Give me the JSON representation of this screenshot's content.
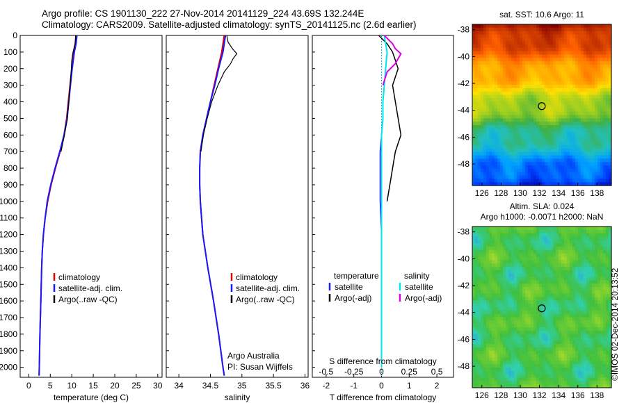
{
  "header": {
    "line1": "Argo profile: CS 1901130_222 27-Nov-2014 20141129_224 43.69S 132.244E",
    "line2": "Climatology: CARS2009. Satellite-adjusted climatology: synTS_20141125.nc (2.6d earlier)"
  },
  "side_stamp": "©IMOS 02-Dec-2014 20:13:52",
  "colors": {
    "climatology": "#e00000",
    "satellite": "#1a1aff",
    "argo": "#000000",
    "sat_sal": "#00e5ee",
    "argo_sal": "#e000e0"
  },
  "chart_data": [
    {
      "type": "line",
      "id": "temperature",
      "xlabel": "temperature (deg C)",
      "ylabel": "",
      "xlim": [
        -2,
        31
      ],
      "ylim": [
        2060,
        0
      ],
      "y_inverted": true,
      "xticks": [
        "0",
        "5",
        "10",
        "15",
        "20",
        "25",
        "30"
      ],
      "xtick_values": [
        0,
        5,
        10,
        15,
        20,
        25,
        30
      ],
      "yticks": [
        "0",
        "100",
        "200",
        "300",
        "400",
        "500",
        "600",
        "700",
        "800",
        "900",
        "1000",
        "1100",
        "1200",
        "1300",
        "1400",
        "1500",
        "1600",
        "1700",
        "1800",
        "1900",
        "2000"
      ],
      "legend": [
        "climatology",
        "satellite-adj. clim.",
        "Argo(..raw -QC)"
      ],
      "legend_position": "lower-right",
      "series": [
        {
          "name": "climatology",
          "depth": [
            0,
            50,
            100,
            200,
            300,
            400,
            500,
            600,
            700,
            800,
            900,
            1000,
            1100,
            1200,
            1300,
            1400,
            1600,
            1800,
            2000,
            2050
          ],
          "values": [
            11.0,
            10.8,
            10.4,
            10.0,
            9.6,
            9.2,
            8.8,
            8.2,
            7.3,
            6.2,
            5.2,
            4.4,
            3.8,
            3.4,
            3.15,
            3.0,
            2.8,
            2.6,
            2.45,
            2.4
          ]
        },
        {
          "name": "satellite-adj. clim.",
          "depth": [
            0,
            50,
            100,
            200,
            300,
            400,
            500,
            600,
            700,
            800,
            900,
            1000,
            1100,
            1200,
            1300,
            1400,
            1600,
            1800,
            2000,
            2050
          ],
          "values": [
            11.2,
            11.0,
            10.6,
            10.1,
            9.7,
            9.3,
            8.9,
            8.2,
            7.2,
            6.1,
            5.1,
            4.3,
            3.8,
            3.4,
            3.15,
            3.0,
            2.8,
            2.6,
            2.45,
            2.4
          ]
        },
        {
          "name": "Argo(..raw -QC)",
          "depth": [
            0,
            50,
            100,
            150,
            200,
            300,
            400,
            500,
            600,
            700
          ],
          "values": [
            10.9,
            10.8,
            10.3,
            10.0,
            9.9,
            9.6,
            9.3,
            9.0,
            8.3,
            7.5
          ]
        }
      ]
    },
    {
      "type": "line",
      "id": "salinity",
      "xlabel": "salinity",
      "xlim": [
        33.8,
        36.05
      ],
      "ylim": [
        2060,
        0
      ],
      "y_inverted": true,
      "xticks": [
        "34",
        "34.5",
        "35",
        "35.5",
        "36"
      ],
      "xtick_values": [
        34,
        34.5,
        35,
        35.5,
        36
      ],
      "legend": [
        "climatology",
        "satellite-adj. clim.",
        "Argo(..raw -QC)"
      ],
      "legend_position": "lower-right",
      "annotation": [
        "Argo Australia",
        "PI: Susan Wijffels"
      ],
      "series": [
        {
          "name": "climatology",
          "depth": [
            0,
            50,
            100,
            200,
            300,
            400,
            500,
            600,
            700,
            800,
            900,
            1000,
            1100,
            1200,
            1300,
            1400,
            1600,
            1800,
            2000,
            2050
          ],
          "values": [
            34.72,
            34.7,
            34.68,
            34.62,
            34.56,
            34.5,
            34.44,
            34.38,
            34.34,
            34.33,
            34.33,
            34.34,
            34.36,
            34.38,
            34.42,
            34.46,
            34.55,
            34.63,
            34.7,
            34.72
          ]
        },
        {
          "name": "satellite-adj. clim.",
          "depth": [
            0,
            50,
            100,
            200,
            300,
            400,
            500,
            600,
            700,
            800,
            900,
            1000,
            1100,
            1200,
            1300,
            1400,
            1600,
            1800,
            2000,
            2050
          ],
          "values": [
            34.74,
            34.72,
            34.7,
            34.63,
            34.57,
            34.5,
            34.44,
            34.38,
            34.34,
            34.33,
            34.33,
            34.34,
            34.36,
            34.38,
            34.42,
            34.46,
            34.55,
            34.63,
            34.7,
            34.72
          ]
        },
        {
          "name": "Argo(..raw -QC)",
          "depth": [
            0,
            40,
            80,
            110,
            140,
            170,
            220,
            300,
            400,
            500,
            600,
            700
          ],
          "values": [
            34.76,
            34.78,
            34.85,
            34.92,
            34.86,
            34.82,
            34.72,
            34.62,
            34.52,
            34.45,
            34.39,
            34.35
          ]
        }
      ]
    },
    {
      "type": "line",
      "id": "difference",
      "xlabel": "T difference from climatology",
      "xlabel_top": "S difference from climatology",
      "xlim": [
        -2.5,
        2.6
      ],
      "ylim": [
        2060,
        0
      ],
      "y_inverted": true,
      "xticks": [
        "-2",
        "-1",
        "0",
        "1",
        "2"
      ],
      "xtick_values": [
        -2,
        -1,
        0,
        1,
        2
      ],
      "s_ticks": [
        "-0.5",
        "-0.25",
        "0",
        "0.25",
        "0.5"
      ],
      "s_tick_values": [
        -2,
        -1,
        0,
        1,
        2
      ],
      "legend_temperature": {
        "title": "temperature",
        "items": [
          "satellite",
          "Argo(-adj)"
        ]
      },
      "legend_salinity": {
        "title": "salinity",
        "items": [
          "satellite",
          "Argo(-adj)"
        ]
      },
      "series": [
        {
          "name": "satellite",
          "depth": [
            0,
            50,
            100,
            200,
            300,
            400,
            500,
            600,
            700,
            800,
            900,
            1000,
            1200,
            1600,
            2000
          ],
          "values": [
            0.1,
            0.15,
            0.2,
            0.15,
            0.1,
            0.05,
            0.05,
            0.0,
            -0.05,
            -0.05,
            -0.05,
            -0.05,
            0.0,
            0.0,
            0.0
          ]
        },
        {
          "name": "Argo(-adj)",
          "depth": [
            0,
            50,
            100,
            150,
            200,
            300,
            400,
            500,
            600,
            700,
            800,
            900,
            1000
          ],
          "values": [
            -0.1,
            0.2,
            0.4,
            0.5,
            0.6,
            0.4,
            0.5,
            0.6,
            0.7,
            0.5,
            0.4,
            0.3,
            0.2
          ]
        },
        {
          "name": "salinity satellite",
          "depth": [
            0,
            50,
            100,
            200,
            300,
            400,
            500,
            600,
            700,
            800,
            900,
            1000,
            1200,
            1600,
            2000
          ],
          "values": [
            0.1,
            0.15,
            0.2,
            0.15,
            0.1,
            0.05,
            0.05,
            0.0,
            0.0,
            0.0,
            0.0,
            0.0,
            0.0,
            0.0,
            0.0
          ]
        },
        {
          "name": "salinity Argo(-adj)",
          "depth": [
            0,
            50,
            80,
            110,
            140,
            170,
            220,
            300
          ],
          "values": [
            0.1,
            0.4,
            0.5,
            0.7,
            0.6,
            0.5,
            0.2,
            0.05
          ]
        }
      ]
    },
    {
      "type": "heatmap",
      "id": "sst_map",
      "title": "sat. SST: 10.6  Argo: 11",
      "xlim": [
        125,
        139.5
      ],
      "ylim": [
        -49.6,
        -37.6
      ],
      "xticks": [
        "126",
        "128",
        "130",
        "132",
        "134",
        "136",
        "138"
      ],
      "xtick_values": [
        126,
        128,
        130,
        132,
        134,
        136,
        138
      ],
      "yticks": [
        "-38",
        "-40",
        "-42",
        "-44",
        "-46",
        "-48"
      ],
      "ytick_values": [
        -38,
        -40,
        -42,
        -44,
        -46,
        -48
      ],
      "argo_position": [
        132.244,
        -43.69
      ],
      "colormap": [
        "#0000a0",
        "#0040ff",
        "#00a0ff",
        "#20c0c0",
        "#40b040",
        "#a0d020",
        "#ffe000",
        "#ffa000",
        "#ff6000",
        "#c03000",
        "#800000"
      ]
    },
    {
      "type": "heatmap",
      "id": "sla_map",
      "title": "Altim. SLA: 0.024",
      "subtitle": "Argo h1000: -0.0071 h2000: NaN",
      "xlim": [
        125,
        139.5
      ],
      "ylim": [
        -49.6,
        -37.6
      ],
      "xticks": [
        "126",
        "128",
        "130",
        "132",
        "134",
        "136",
        "138"
      ],
      "xtick_values": [
        126,
        128,
        130,
        132,
        134,
        136,
        138
      ],
      "yticks": [
        "-38",
        "-40",
        "-42",
        "-44",
        "-46",
        "-48"
      ],
      "ytick_values": [
        -38,
        -40,
        -42,
        -44,
        -46,
        -48
      ],
      "argo_position": [
        132.244,
        -43.69
      ]
    }
  ]
}
